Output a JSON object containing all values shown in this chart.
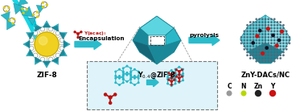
{
  "bg_color": "#ffffff",
  "teal_color": "#2ab8c8",
  "teal_dark": "#1a8898",
  "teal_light": "#5dd5e0",
  "teal_lighter": "#88e8f0",
  "teal_arrow": "#2bbccc",
  "yellow_color": "#f0d020",
  "gray_color": "#888888",
  "dark_gray": "#444444",
  "red_color": "#bb1111",
  "white_color": "#ffffff",
  "inset_bg": "#dff4fa",
  "zif8_label": "ZIF-8",
  "mid_label": "Y$_{0.4}$@ZIF-8",
  "right_label": "ZnY-DACs/NC",
  "encap_label": "Encapsulation",
  "pyro_label": "pyrolysis",
  "yacac_label": "Y(acac)$_3$",
  "legend_labels": [
    "C",
    "N",
    "Zn",
    "Y"
  ],
  "legend_colors": [
    "#999999",
    "#b8d800",
    "#222222",
    "#cc1111"
  ],
  "figsize": [
    3.78,
    1.38
  ],
  "dpi": 100
}
